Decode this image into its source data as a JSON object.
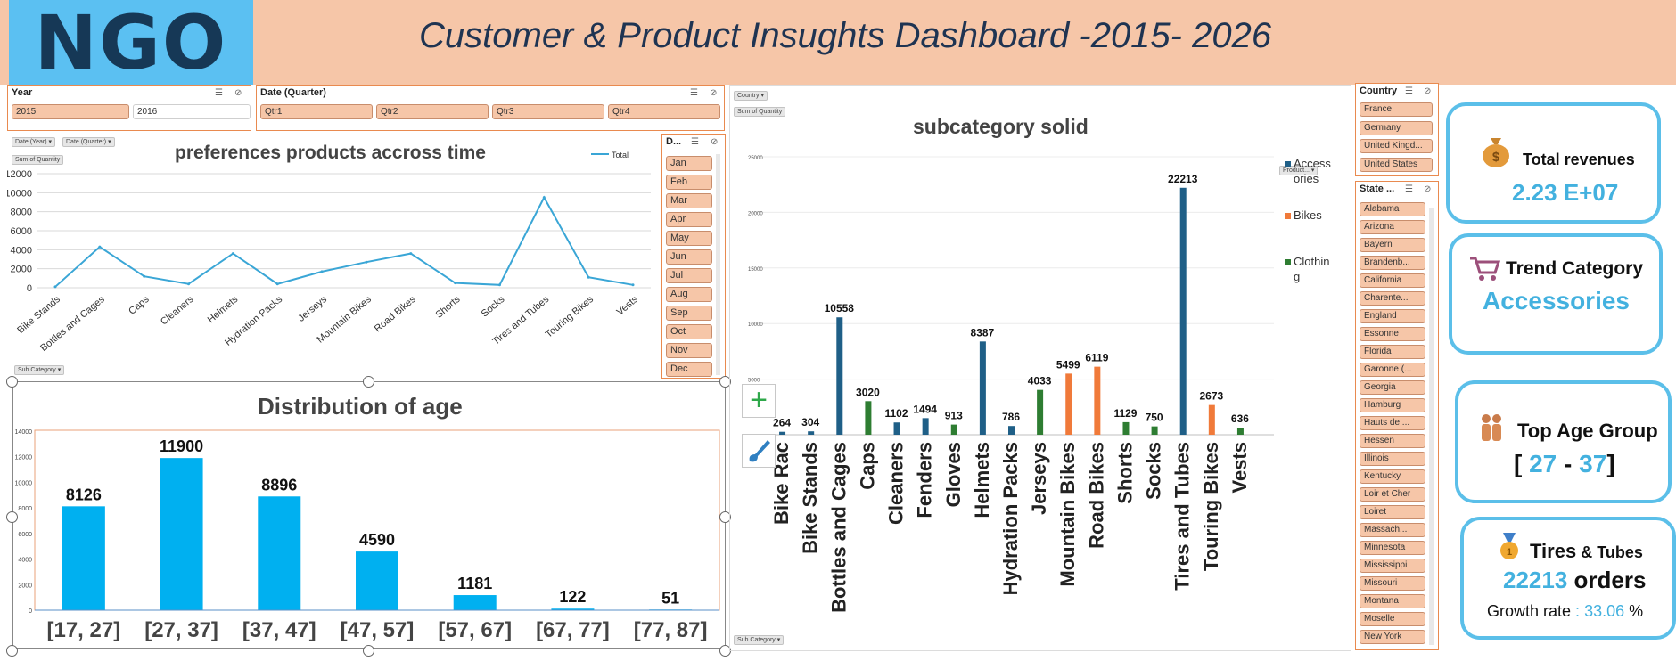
{
  "header": {
    "logo": "NGO",
    "title": "Customer &  Product Insughts Dashboard -2015- 2026"
  },
  "year_slicer": {
    "title": "Year",
    "items": [
      {
        "label": "2015",
        "selected": true
      },
      {
        "label": "2016",
        "selected": false
      }
    ]
  },
  "quarter_slicer": {
    "title": "Date (Quarter)",
    "items": [
      "Qtr1",
      "Qtr2",
      "Qtr3",
      "Qtr4"
    ]
  },
  "month_slicer": {
    "title": "D...",
    "items": [
      "Jan",
      "Feb",
      "Mar",
      "Apr",
      "May",
      "Jun",
      "Jul",
      "Aug",
      "Sep",
      "Oct",
      "Nov",
      "Dec"
    ]
  },
  "country_slicer": {
    "title": "Country",
    "items": [
      "France",
      "Germany",
      "United Kingd...",
      "United States"
    ]
  },
  "state_slicer": {
    "title": "State ...",
    "items": [
      "Alabama",
      "Arizona",
      "Bayern",
      "Brandenb...",
      "California",
      "Charente...",
      "England",
      "Essonne",
      "Florida",
      "Garonne (...",
      "Georgia",
      "Hamburg",
      "Hauts de ...",
      "Hessen",
      "Illinois",
      "Kentucky",
      "Loir et Cher",
      "Loiret",
      "Massach...",
      "Minnesota",
      "Mississippi",
      "Missouri",
      "Montana",
      "Moselle",
      "New York"
    ]
  },
  "line_chart_pills": {
    "date_year": "Date (Year)",
    "date_quarter": "Date (Quarter)",
    "sum_quantity": "Sum of Quantity",
    "sub_category": "Sub Category"
  },
  "bar_chart_pills": {
    "country": "Country",
    "sum_quantity": "Sum of Quantity",
    "product": "Product",
    "sub_category": "Sub Category"
  },
  "kpis": {
    "revenue": {
      "title": "Total revenues",
      "value": "2.23 E+07",
      "icon": "money-bag-icon"
    },
    "trend": {
      "title": "Trend Category",
      "value": "Accessories",
      "icon": "shopping-cart-icon"
    },
    "age": {
      "title": "Top Age Group",
      "open": "[",
      "low": "27",
      "dash": "-",
      "high": "37",
      "close": "]",
      "icon": "people-icon"
    },
    "tires": {
      "title_main": "Tires",
      "title_rest": " & Tubes",
      "value": "22213",
      "value_suffix": " orders",
      "growth_label": "Growth rate",
      "growth_sep": " : ",
      "growth_value": "33.06",
      "growth_unit": " %",
      "icon": "medal-icon"
    }
  },
  "colors": {
    "accent_blue": "#43b1df",
    "slicer_fill": "#f6c6a8",
    "header_band": "#f6c6a8",
    "logo_bg": "#5bc0f2",
    "accessories": "#1f5f87",
    "bikes": "#f07a3a",
    "clothing": "#2e7d32",
    "age_bars": "#00b0f0",
    "line": "#3aa6d6"
  },
  "chart_data": [
    {
      "type": "line",
      "title": "preferences  products accross time",
      "legend": [
        "Total"
      ],
      "legend_position": "top-right",
      "categories": [
        "Bike Stands",
        "Bottles and Cages",
        "Caps",
        "Cleaners",
        "Helmets",
        "Hydration Packs",
        "Jerseys",
        "Mountain Bikes",
        "Road Bikes",
        "Shorts",
        "Socks",
        "Tires and Tubes",
        "Touring Bikes",
        "Vests"
      ],
      "values": [
        100,
        4300,
        1200,
        400,
        3600,
        400,
        1700,
        2700,
        3600,
        500,
        300,
        9500,
        1100,
        300
      ],
      "ylim": [
        0,
        12000
      ],
      "yticks": [
        "0",
        "2000",
        "4000",
        "6000",
        "8000",
        "10000",
        "12000"
      ],
      "grid": true
    },
    {
      "type": "bar",
      "title": "subcategory solid",
      "legend": [
        "Access ories",
        "Bikes",
        "Clothin g"
      ],
      "legend_position": "right",
      "ylim": [
        0,
        25000
      ],
      "yticks": [
        "0",
        "5000",
        "10000",
        "15000",
        "20000",
        "25000"
      ],
      "categories": [
        "Bike Racks",
        "Bike Stands",
        "Bottles and Cages",
        "Caps",
        "Cleaners",
        "Fenders",
        "Gloves",
        "Helmets",
        "Hydration Packs",
        "Jerseys",
        "Mountain Bikes",
        "Road Bikes",
        "Shorts",
        "Socks",
        "Tires and Tubes",
        "Touring Bikes",
        "Vests"
      ],
      "tick_labels": [
        "Bike Rac",
        "Bike Stands",
        "Bottles and Cages",
        "Caps",
        "Cleaners",
        "Fenders",
        "Gloves",
        "Helmets",
        "Hydration Packs",
        "Jerseys",
        "Mountain Bikes",
        "Road Bikes",
        "Shorts",
        "Socks",
        "Tires and Tubes",
        "Touring Bikes",
        "Vests"
      ],
      "bars": [
        {
          "category": "Bike Racks",
          "series": "Accessories",
          "value": 264,
          "label": "264"
        },
        {
          "category": "Bike Stands",
          "series": "Accessories",
          "value": 304,
          "label": "304"
        },
        {
          "category": "Bottles and Cages",
          "series": "Accessories",
          "value": 10558,
          "label": "10558"
        },
        {
          "category": "Caps",
          "series": "Clothing",
          "value": 3020,
          "label": "3020"
        },
        {
          "category": "Cleaners",
          "series": "Accessories",
          "value": 1102,
          "label": "1102"
        },
        {
          "category": "Fenders",
          "series": "Accessories",
          "value": 1494,
          "label": "1494"
        },
        {
          "category": "Gloves",
          "series": "Clothing",
          "value": 913,
          "label": "913"
        },
        {
          "category": "Helmets",
          "series": "Accessories",
          "value": 8387,
          "label": "8387"
        },
        {
          "category": "Hydration Packs",
          "series": "Accessories",
          "value": 786,
          "label": "786"
        },
        {
          "category": "Jerseys",
          "series": "Clothing",
          "value": 4033,
          "label": "4033"
        },
        {
          "category": "Mountain Bikes",
          "series": "Bikes",
          "value": 5499,
          "label": "5499"
        },
        {
          "category": "Road Bikes",
          "series": "Bikes",
          "value": 6119,
          "label": "6119"
        },
        {
          "category": "Shorts",
          "series": "Clothing",
          "value": 1129,
          "label": "1129"
        },
        {
          "category": "Socks",
          "series": "Clothing",
          "value": 750,
          "label": "750"
        },
        {
          "category": "Tires and Tubes",
          "series": "Accessories",
          "value": 22213,
          "label": "22213"
        },
        {
          "category": "Touring Bikes",
          "series": "Bikes",
          "value": 2673,
          "label": "2673"
        },
        {
          "category": "Vests",
          "series": "Clothing",
          "value": 636,
          "label": "636"
        }
      ]
    },
    {
      "type": "bar",
      "title": "Distribution of age",
      "categories": [
        "[17, 27]",
        "[27, 37]",
        "[37, 47]",
        "[47, 57]",
        "[57, 67]",
        "[67, 77]",
        "[77, 87]"
      ],
      "values": [
        8126,
        11900,
        8896,
        4590,
        1181,
        122,
        51
      ],
      "ylim": [
        0,
        14000
      ],
      "yticks": [
        "0",
        "2000",
        "4000",
        "6000",
        "8000",
        "10000",
        "12000",
        "14000"
      ]
    }
  ]
}
